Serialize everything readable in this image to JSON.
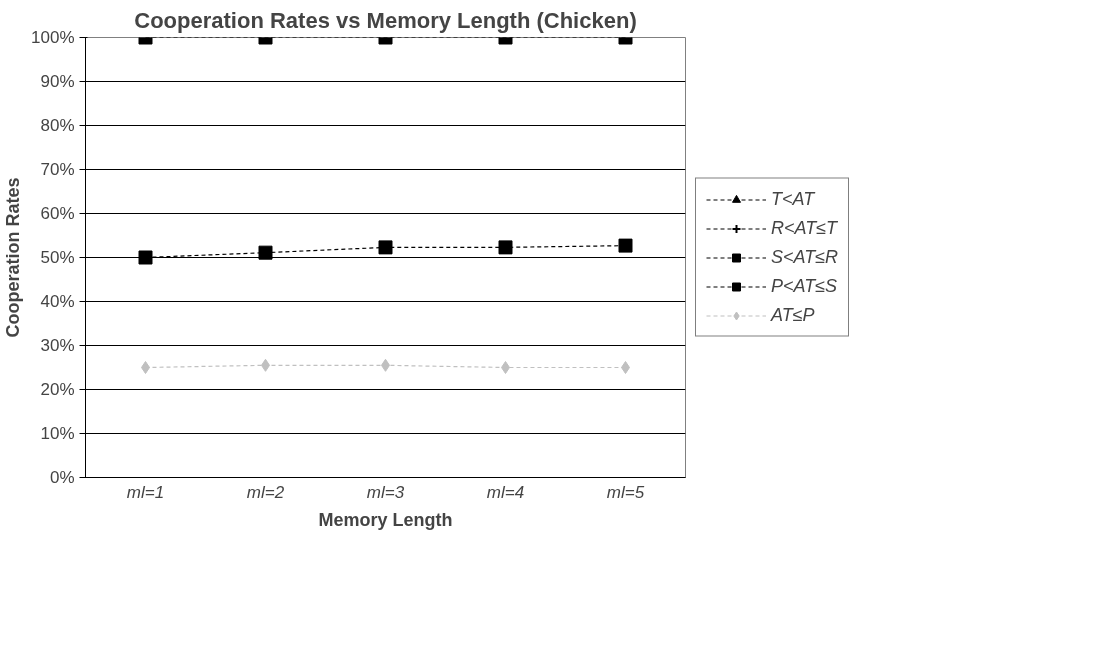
{
  "chart_data": {
    "type": "line",
    "title": "Cooperation Rates vs Memory Length (Chicken)",
    "xlabel": "Memory Length",
    "ylabel": "Cooperation Rates",
    "categories": [
      "ml=1",
      "ml=2",
      "ml=3",
      "ml=4",
      "ml=5"
    ],
    "series": [
      {
        "name": "T<AT",
        "color": "#000000",
        "marker": "triangle",
        "values": [
          null,
          null,
          null,
          null,
          null
        ]
      },
      {
        "name": "R<AT≤T",
        "color": "#000000",
        "marker": "cross",
        "values": [
          null,
          null,
          null,
          null,
          null
        ]
      },
      {
        "name": "S<AT≤R",
        "color": "#000000",
        "marker": "square",
        "values": [
          100,
          100,
          100,
          100,
          100
        ]
      },
      {
        "name": "P<AT≤S",
        "color": "#000000",
        "marker": "square",
        "values": [
          50,
          51.1,
          52.3,
          52.3,
          52.7
        ]
      },
      {
        "name": "AT≤P",
        "color": "#c0c0c0",
        "marker": "diamond",
        "values": [
          25,
          25.5,
          25.5,
          25,
          25
        ]
      }
    ],
    "ylim": [
      0,
      100
    ],
    "yticks": [
      {
        "value": 0,
        "label": "0%"
      },
      {
        "value": 10,
        "label": "10%"
      },
      {
        "value": 20,
        "label": "20%"
      },
      {
        "value": 30,
        "label": "30%"
      },
      {
        "value": 40,
        "label": "40%"
      },
      {
        "value": 50,
        "label": "50%"
      },
      {
        "value": 60,
        "label": "60%"
      },
      {
        "value": 70,
        "label": "70%"
      },
      {
        "value": 80,
        "label": "80%"
      },
      {
        "value": 90,
        "label": "90%"
      },
      {
        "value": 100,
        "label": "100%"
      }
    ],
    "grid": "y",
    "legend": "right",
    "line_style": "dashed"
  }
}
